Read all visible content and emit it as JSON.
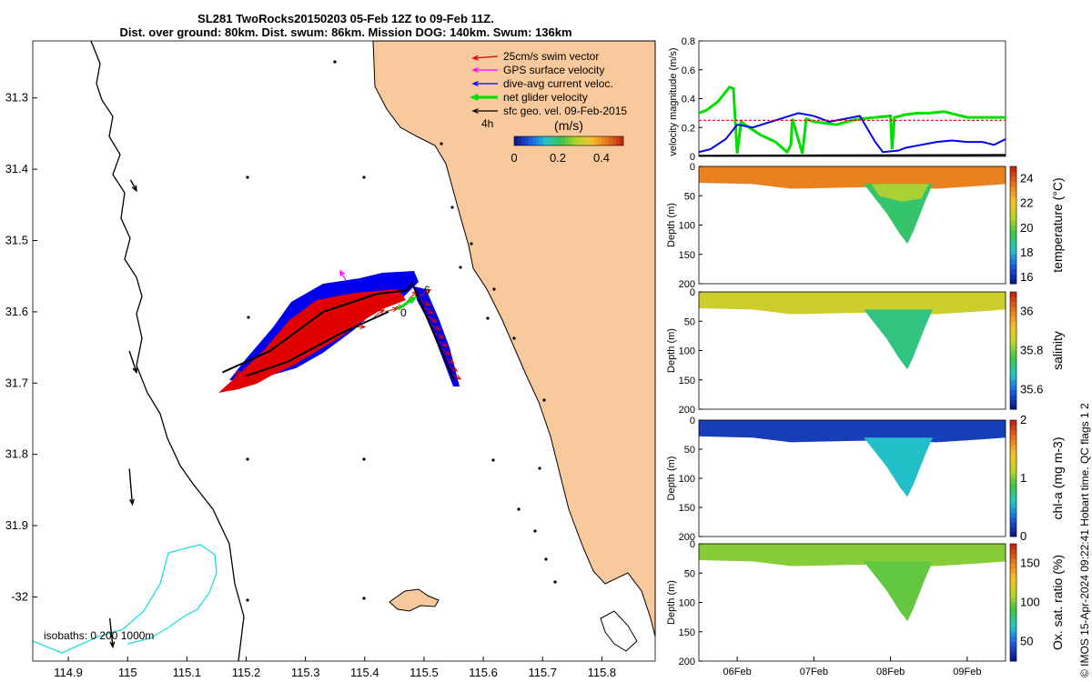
{
  "titles": {
    "line1": "SL281 TwoRocks20150203 05-Feb 12Z to 09-Feb 11Z.",
    "line2": "Dist. over ground: 80km. Dist. swum: 86km. Mission DOG: 140km. Swum: 136km"
  },
  "side_note": "© IMOS 15-Apr-2024 09:22:41 Hobart time. QC flags 1  2",
  "colors": {
    "land": "#f8c99c",
    "swim": "#e00000",
    "gps": "#ff00ff",
    "dive_avg": "#0000ee",
    "net": "#00dd00",
    "sfc_geo": "#000000",
    "isobath_200": "#000000",
    "isobath_1000": "#22dddd"
  },
  "chart_data": [
    {
      "type": "scatter",
      "name": "map",
      "x_ticks": [
        "114.9",
        "115",
        "115.1",
        "115.2",
        "115.3",
        "115.4",
        "115.5",
        "115.6",
        "115.7",
        "115.8"
      ],
      "y_ticks": [
        "31.3",
        "31.4",
        "31.5",
        "31.6",
        "31.7",
        "31.8",
        "31.9",
        "-32"
      ],
      "xlim": [
        114.84,
        115.89
      ],
      "ylim": [
        31.22,
        32.09
      ],
      "legend": [
        "25cm/s swim vector",
        "GPS surface velocity",
        "dive-avg current veloc.",
        "net glider velocity",
        "sfc geo. vel. 09-Feb-2015"
      ],
      "legend_time_label": "4h",
      "colorbar": {
        "label": "(m/s)",
        "ticks": [
          "0",
          "0.2",
          "0.4"
        ],
        "range": [
          0,
          0.5
        ]
      },
      "isobath_label": "isobaths: 0   200   1000m",
      "track_labels": [
        "6",
        "0"
      ],
      "glider_track": [
        [
          115.16,
          31.685
        ],
        [
          115.24,
          31.655
        ],
        [
          115.33,
          31.6
        ],
        [
          115.42,
          31.575
        ],
        [
          115.47,
          31.57
        ],
        [
          115.48,
          31.56
        ],
        [
          115.55,
          31.695
        ]
      ],
      "return_leg": [
        [
          115.44,
          31.6
        ],
        [
          115.36,
          31.63
        ],
        [
          115.27,
          31.67
        ],
        [
          115.2,
          31.69
        ]
      ],
      "sfc_geo_arrows": [
        [
          115.005,
          31.415,
          0.01,
          0.015
        ],
        [
          115.003,
          31.655,
          0.012,
          0.03
        ],
        [
          115.003,
          31.82,
          0.005,
          0.05
        ],
        [
          114.97,
          32.03,
          0.005,
          0.04
        ]
      ]
    },
    {
      "type": "line",
      "name": "velocity",
      "ylabel": "velocity magnitude (m/s)",
      "ylim": [
        0,
        0.8
      ],
      "y_ticks": [
        "0",
        "0.2",
        "0.4",
        "0.6",
        "0.8"
      ],
      "xlim": [
        5.5,
        9.5
      ],
      "series": [
        {
          "name": "net glider velocity",
          "x": [
            5.5,
            5.6,
            5.75,
            5.9,
            5.95,
            6.0,
            6.05,
            6.1,
            6.3,
            6.5,
            6.65,
            6.7,
            6.72,
            6.85,
            6.9,
            7.0,
            7.3,
            7.5,
            7.6,
            7.8,
            8.0,
            8.02,
            8.05,
            8.2,
            8.35,
            8.5,
            8.7,
            8.85,
            9.0,
            9.2,
            9.5
          ],
          "values": [
            0.3,
            0.32,
            0.38,
            0.48,
            0.47,
            0.02,
            0.24,
            0.22,
            0.15,
            0.1,
            0.03,
            0.08,
            0.26,
            0.02,
            0.26,
            0.24,
            0.22,
            0.25,
            0.26,
            0.27,
            0.28,
            0.05,
            0.27,
            0.29,
            0.3,
            0.3,
            0.31,
            0.29,
            0.27,
            0.27,
            0.27
          ]
        },
        {
          "name": "dive-avg current veloc.",
          "x": [
            5.5,
            5.65,
            5.85,
            6.0,
            6.2,
            6.5,
            6.8,
            7.0,
            7.2,
            7.4,
            7.6,
            7.8,
            7.9,
            8.1,
            8.2,
            8.4,
            8.6,
            8.8,
            9.0,
            9.2,
            9.35,
            9.5
          ],
          "values": [
            0.03,
            0.05,
            0.12,
            0.22,
            0.2,
            0.25,
            0.3,
            0.28,
            0.24,
            0.26,
            0.28,
            0.1,
            0.03,
            0.04,
            0.06,
            0.08,
            0.1,
            0.11,
            0.1,
            0.1,
            0.08,
            0.12
          ]
        },
        {
          "name": "25cm/s swim vector",
          "x": [
            5.5,
            9.5
          ],
          "values": [
            0.25,
            0.25
          ]
        },
        {
          "name": "sfc geo. vel.",
          "x": [
            5.5,
            7.5,
            9.5
          ],
          "values": [
            0.005,
            0.008,
            0.01
          ]
        }
      ]
    },
    {
      "type": "heatmap",
      "name": "temperature",
      "ylabel": "Depth (m)",
      "colorbar_label": "temperature (°C)",
      "colorbar_ticks": [
        "16",
        "18",
        "20",
        "22",
        "24"
      ],
      "colorbar_range": [
        15.5,
        25
      ],
      "y_ticks": [
        "0",
        "50",
        "100",
        "150",
        "200"
      ],
      "ylim": [
        0,
        200
      ],
      "color_stops": [
        "#0d1a8c",
        "#1f5ee0",
        "#22c7c7",
        "#3cc24a",
        "#b9d42a",
        "#f6c22e",
        "#e87a1c",
        "#c62814"
      ],
      "bands": [
        {
          "depth": [
            0,
            35
          ],
          "value": 23.5
        },
        {
          "depth": [
            35,
            60
          ],
          "value": 21.0
        },
        {
          "depth": [
            60,
            130
          ],
          "value": 19.2
        }
      ]
    },
    {
      "type": "heatmap",
      "name": "salinity",
      "ylabel": "Depth (m)",
      "colorbar_label": "salinity",
      "colorbar_ticks": [
        "35.6",
        "35.8",
        "36"
      ],
      "colorbar_range": [
        35.5,
        36.1
      ],
      "y_ticks": [
        "0",
        "50",
        "100",
        "150",
        "200"
      ],
      "ylim": [
        0,
        200
      ],
      "color_stops": [
        "#0d1a8c",
        "#1f5ee0",
        "#22c7c7",
        "#3cc24a",
        "#b9d42a",
        "#f6c22e",
        "#e87a1c",
        "#c62814"
      ],
      "bands": [
        {
          "depth": [
            0,
            35
          ],
          "value": 35.87
        },
        {
          "depth": [
            35,
            130
          ],
          "value": 35.72
        }
      ]
    },
    {
      "type": "heatmap",
      "name": "chl-a",
      "ylabel": "Depth (m)",
      "colorbar_label": "chl-a (mg m-3)",
      "colorbar_ticks": [
        "0",
        "1",
        "2"
      ],
      "colorbar_range": [
        0,
        2
      ],
      "y_ticks": [
        "0",
        "50",
        "100",
        "150",
        "200"
      ],
      "ylim": [
        0,
        200
      ],
      "color_stops": [
        "#0d1a8c",
        "#1f5ee0",
        "#22c7c7",
        "#3cc24a",
        "#b9d42a",
        "#f6c22e",
        "#e87a1c",
        "#c62814"
      ],
      "bands": [
        {
          "depth": [
            0,
            35
          ],
          "value": 0.15
        },
        {
          "depth": [
            35,
            130
          ],
          "value": 0.55
        }
      ]
    },
    {
      "type": "heatmap",
      "name": "oxygen",
      "ylabel": "Depth (m)",
      "colorbar_label": "Ox. sat. ratio (%)",
      "colorbar_ticks": [
        "50",
        "100",
        "150"
      ],
      "colorbar_range": [
        25,
        175
      ],
      "y_ticks": [
        "0",
        "50",
        "100",
        "150",
        "200"
      ],
      "ylim": [
        0,
        200
      ],
      "x_ticks": [
        "06Feb",
        "07Feb",
        "08Feb",
        "09Feb"
      ],
      "x_tick_values": [
        6,
        7,
        8,
        9
      ],
      "color_stops": [
        "#0d1a8c",
        "#1f5ee0",
        "#22c7c7",
        "#3cc24a",
        "#b9d42a",
        "#f6c22e",
        "#e87a1c",
        "#c62814"
      ],
      "bands": [
        {
          "depth": [
            0,
            35
          ],
          "value": 102
        },
        {
          "depth": [
            35,
            130
          ],
          "value": 96
        }
      ]
    }
  ]
}
